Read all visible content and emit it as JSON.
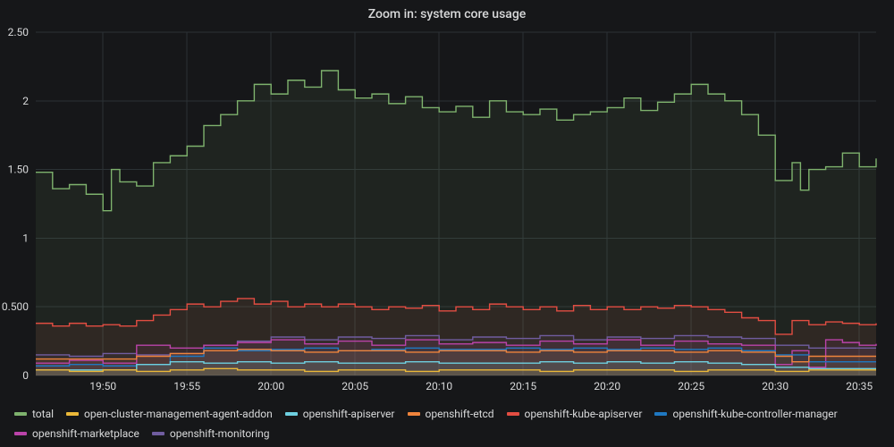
{
  "title": "Zoom in: system core usage",
  "background_color": "#161719",
  "text_color": "#d8d9da",
  "grid_color": "#2c3235",
  "title_fontsize": 14,
  "axis_fontsize": 12,
  "legend_fontsize": 12,
  "chart": {
    "type": "line-step",
    "ylim": [
      0,
      2.5
    ],
    "yticks": [
      0,
      0.5,
      1,
      1.5,
      2,
      2.5
    ],
    "ytick_labels": [
      "0",
      "0.500",
      "1",
      "1.50",
      "2",
      "2.50"
    ],
    "x_range_minutes": [
      46,
      96
    ],
    "xtick_minutes": [
      50,
      55,
      60,
      65,
      70,
      75,
      80,
      85,
      90,
      95
    ],
    "xtick_labels": [
      "19:50",
      "19:55",
      "20:00",
      "20:05",
      "20:10",
      "20:15",
      "20:20",
      "20:25",
      "20:30",
      "20:35"
    ],
    "series": [
      {
        "name": "total",
        "color": "#7eb26d",
        "points": [
          [
            46,
            1.48
          ],
          [
            47,
            1.36
          ],
          [
            48,
            1.39
          ],
          [
            49,
            1.32
          ],
          [
            50,
            1.2
          ],
          [
            50.5,
            1.5
          ],
          [
            51,
            1.41
          ],
          [
            52,
            1.38
          ],
          [
            53,
            1.55
          ],
          [
            54,
            1.6
          ],
          [
            55,
            1.67
          ],
          [
            56,
            1.82
          ],
          [
            57,
            1.9
          ],
          [
            58,
            2.0
          ],
          [
            59,
            2.12
          ],
          [
            60,
            2.05
          ],
          [
            61,
            2.15
          ],
          [
            62,
            2.1
          ],
          [
            63,
            2.22
          ],
          [
            64,
            2.08
          ],
          [
            65,
            2.02
          ],
          [
            66,
            2.05
          ],
          [
            67,
            1.98
          ],
          [
            68,
            2.03
          ],
          [
            69,
            1.95
          ],
          [
            70,
            1.92
          ],
          [
            71,
            1.96
          ],
          [
            72,
            1.88
          ],
          [
            73,
            2.0
          ],
          [
            74,
            1.92
          ],
          [
            75,
            1.9
          ],
          [
            76,
            1.94
          ],
          [
            77,
            1.86
          ],
          [
            78,
            1.9
          ],
          [
            79,
            1.92
          ],
          [
            80,
            1.95
          ],
          [
            81,
            2.02
          ],
          [
            82,
            1.93
          ],
          [
            83,
            1.99
          ],
          [
            84,
            2.05
          ],
          [
            85,
            2.12
          ],
          [
            86,
            2.05
          ],
          [
            87,
            2.0
          ],
          [
            88,
            1.9
          ],
          [
            89,
            1.75
          ],
          [
            90,
            1.42
          ],
          [
            91,
            1.55
          ],
          [
            91.5,
            1.35
          ],
          [
            92,
            1.5
          ],
          [
            93,
            1.52
          ],
          [
            94,
            1.62
          ],
          [
            95,
            1.52
          ],
          [
            96,
            1.58
          ]
        ]
      },
      {
        "name": "open-cluster-management-agent-addon",
        "color": "#eab839",
        "points": [
          [
            46,
            0.04
          ],
          [
            48,
            0.03
          ],
          [
            50,
            0.04
          ],
          [
            52,
            0.03
          ],
          [
            54,
            0.04
          ],
          [
            56,
            0.05
          ],
          [
            58,
            0.04
          ],
          [
            60,
            0.04
          ],
          [
            62,
            0.03
          ],
          [
            64,
            0.04
          ],
          [
            66,
            0.04
          ],
          [
            68,
            0.03
          ],
          [
            70,
            0.04
          ],
          [
            72,
            0.04
          ],
          [
            74,
            0.04
          ],
          [
            76,
            0.03
          ],
          [
            78,
            0.04
          ],
          [
            80,
            0.04
          ],
          [
            82,
            0.04
          ],
          [
            84,
            0.03
          ],
          [
            86,
            0.04
          ],
          [
            88,
            0.04
          ],
          [
            90,
            0.03
          ],
          [
            92,
            0.04
          ],
          [
            94,
            0.04
          ],
          [
            96,
            0.04
          ]
        ]
      },
      {
        "name": "openshift-apiserver",
        "color": "#6ed0e0",
        "points": [
          [
            46,
            0.04
          ],
          [
            50,
            0.04
          ],
          [
            52,
            0.08
          ],
          [
            54,
            0.1
          ],
          [
            56,
            0.09
          ],
          [
            58,
            0.1
          ],
          [
            60,
            0.09
          ],
          [
            62,
            0.1
          ],
          [
            64,
            0.09
          ],
          [
            66,
            0.09
          ],
          [
            68,
            0.1
          ],
          [
            70,
            0.09
          ],
          [
            72,
            0.09
          ],
          [
            74,
            0.09
          ],
          [
            76,
            0.1
          ],
          [
            78,
            0.09
          ],
          [
            80,
            0.1
          ],
          [
            82,
            0.09
          ],
          [
            84,
            0.1
          ],
          [
            86,
            0.09
          ],
          [
            88,
            0.08
          ],
          [
            90,
            0.06
          ],
          [
            92,
            0.05
          ],
          [
            94,
            0.05
          ],
          [
            96,
            0.05
          ]
        ]
      },
      {
        "name": "openshift-etcd",
        "color": "#ef843c",
        "points": [
          [
            46,
            0.12
          ],
          [
            48,
            0.12
          ],
          [
            50,
            0.12
          ],
          [
            52,
            0.14
          ],
          [
            54,
            0.16
          ],
          [
            56,
            0.18
          ],
          [
            58,
            0.19
          ],
          [
            60,
            0.18
          ],
          [
            62,
            0.17
          ],
          [
            64,
            0.18
          ],
          [
            66,
            0.18
          ],
          [
            68,
            0.17
          ],
          [
            70,
            0.18
          ],
          [
            72,
            0.18
          ],
          [
            74,
            0.17
          ],
          [
            76,
            0.18
          ],
          [
            78,
            0.17
          ],
          [
            80,
            0.18
          ],
          [
            82,
            0.18
          ],
          [
            84,
            0.17
          ],
          [
            86,
            0.18
          ],
          [
            88,
            0.17
          ],
          [
            90,
            0.14
          ],
          [
            91,
            0.1
          ],
          [
            92,
            0.14
          ],
          [
            94,
            0.14
          ],
          [
            96,
            0.14
          ]
        ]
      },
      {
        "name": "openshift-kube-apiserver",
        "color": "#e24d42",
        "points": [
          [
            46,
            0.38
          ],
          [
            47,
            0.36
          ],
          [
            48,
            0.38
          ],
          [
            49,
            0.36
          ],
          [
            50,
            0.37
          ],
          [
            51,
            0.36
          ],
          [
            52,
            0.4
          ],
          [
            53,
            0.44
          ],
          [
            54,
            0.48
          ],
          [
            55,
            0.52
          ],
          [
            56,
            0.5
          ],
          [
            57,
            0.54
          ],
          [
            58,
            0.56
          ],
          [
            59,
            0.52
          ],
          [
            60,
            0.54
          ],
          [
            61,
            0.5
          ],
          [
            62,
            0.52
          ],
          [
            63,
            0.5
          ],
          [
            64,
            0.52
          ],
          [
            65,
            0.5
          ],
          [
            66,
            0.48
          ],
          [
            67,
            0.5
          ],
          [
            68,
            0.49
          ],
          [
            69,
            0.51
          ],
          [
            70,
            0.47
          ],
          [
            71,
            0.5
          ],
          [
            72,
            0.48
          ],
          [
            73,
            0.52
          ],
          [
            74,
            0.5
          ],
          [
            75,
            0.48
          ],
          [
            76,
            0.5
          ],
          [
            77,
            0.47
          ],
          [
            78,
            0.51
          ],
          [
            79,
            0.48
          ],
          [
            80,
            0.5
          ],
          [
            81,
            0.48
          ],
          [
            82,
            0.5
          ],
          [
            83,
            0.49
          ],
          [
            84,
            0.51
          ],
          [
            85,
            0.5
          ],
          [
            86,
            0.48
          ],
          [
            87,
            0.46
          ],
          [
            88,
            0.42
          ],
          [
            89,
            0.4
          ],
          [
            90,
            0.3
          ],
          [
            91,
            0.4
          ],
          [
            92,
            0.37
          ],
          [
            93,
            0.39
          ],
          [
            94,
            0.38
          ],
          [
            95,
            0.37
          ],
          [
            96,
            0.38
          ]
        ]
      },
      {
        "name": "openshift-kube-controller-manager",
        "color": "#1f78c1",
        "points": [
          [
            46,
            0.07
          ],
          [
            48,
            0.08
          ],
          [
            50,
            0.07
          ],
          [
            52,
            0.08
          ],
          [
            54,
            0.14
          ],
          [
            56,
            0.2
          ],
          [
            58,
            0.18
          ],
          [
            60,
            0.19
          ],
          [
            62,
            0.2
          ],
          [
            64,
            0.18
          ],
          [
            66,
            0.19
          ],
          [
            68,
            0.2
          ],
          [
            70,
            0.19
          ],
          [
            72,
            0.19
          ],
          [
            74,
            0.2
          ],
          [
            76,
            0.19
          ],
          [
            78,
            0.2
          ],
          [
            80,
            0.19
          ],
          [
            82,
            0.2
          ],
          [
            84,
            0.19
          ],
          [
            86,
            0.2
          ],
          [
            88,
            0.18
          ],
          [
            90,
            0.15
          ],
          [
            92,
            0.1
          ],
          [
            94,
            0.1
          ],
          [
            96,
            0.1
          ]
        ]
      },
      {
        "name": "openshift-marketplace",
        "color": "#ba43a9",
        "points": [
          [
            46,
            0.09
          ],
          [
            48,
            0.11
          ],
          [
            50,
            0.09
          ],
          [
            52,
            0.22
          ],
          [
            53,
            0.22
          ],
          [
            54,
            0.2
          ],
          [
            56,
            0.22
          ],
          [
            58,
            0.24
          ],
          [
            60,
            0.26
          ],
          [
            62,
            0.23
          ],
          [
            64,
            0.25
          ],
          [
            66,
            0.22
          ],
          [
            68,
            0.26
          ],
          [
            70,
            0.23
          ],
          [
            72,
            0.24
          ],
          [
            74,
            0.22
          ],
          [
            76,
            0.25
          ],
          [
            78,
            0.23
          ],
          [
            80,
            0.26
          ],
          [
            82,
            0.22
          ],
          [
            84,
            0.25
          ],
          [
            86,
            0.23
          ],
          [
            88,
            0.22
          ],
          [
            90,
            0.08
          ],
          [
            91,
            0.18
          ],
          [
            92,
            0.06
          ],
          [
            93,
            0.26
          ],
          [
            94,
            0.24
          ],
          [
            95,
            0.22
          ],
          [
            96,
            0.23
          ]
        ]
      },
      {
        "name": "openshift-monitoring",
        "color": "#705da0",
        "points": [
          [
            46,
            0.15
          ],
          [
            48,
            0.14
          ],
          [
            50,
            0.16
          ],
          [
            52,
            0.15
          ],
          [
            54,
            0.16
          ],
          [
            56,
            0.22
          ],
          [
            58,
            0.25
          ],
          [
            60,
            0.28
          ],
          [
            62,
            0.26
          ],
          [
            64,
            0.28
          ],
          [
            66,
            0.27
          ],
          [
            68,
            0.29
          ],
          [
            70,
            0.26
          ],
          [
            72,
            0.28
          ],
          [
            74,
            0.27
          ],
          [
            76,
            0.29
          ],
          [
            78,
            0.26
          ],
          [
            80,
            0.28
          ],
          [
            82,
            0.27
          ],
          [
            84,
            0.29
          ],
          [
            86,
            0.28
          ],
          [
            88,
            0.27
          ],
          [
            90,
            0.22
          ],
          [
            92,
            0.2
          ],
          [
            94,
            0.2
          ],
          [
            96,
            0.2
          ]
        ]
      }
    ]
  }
}
